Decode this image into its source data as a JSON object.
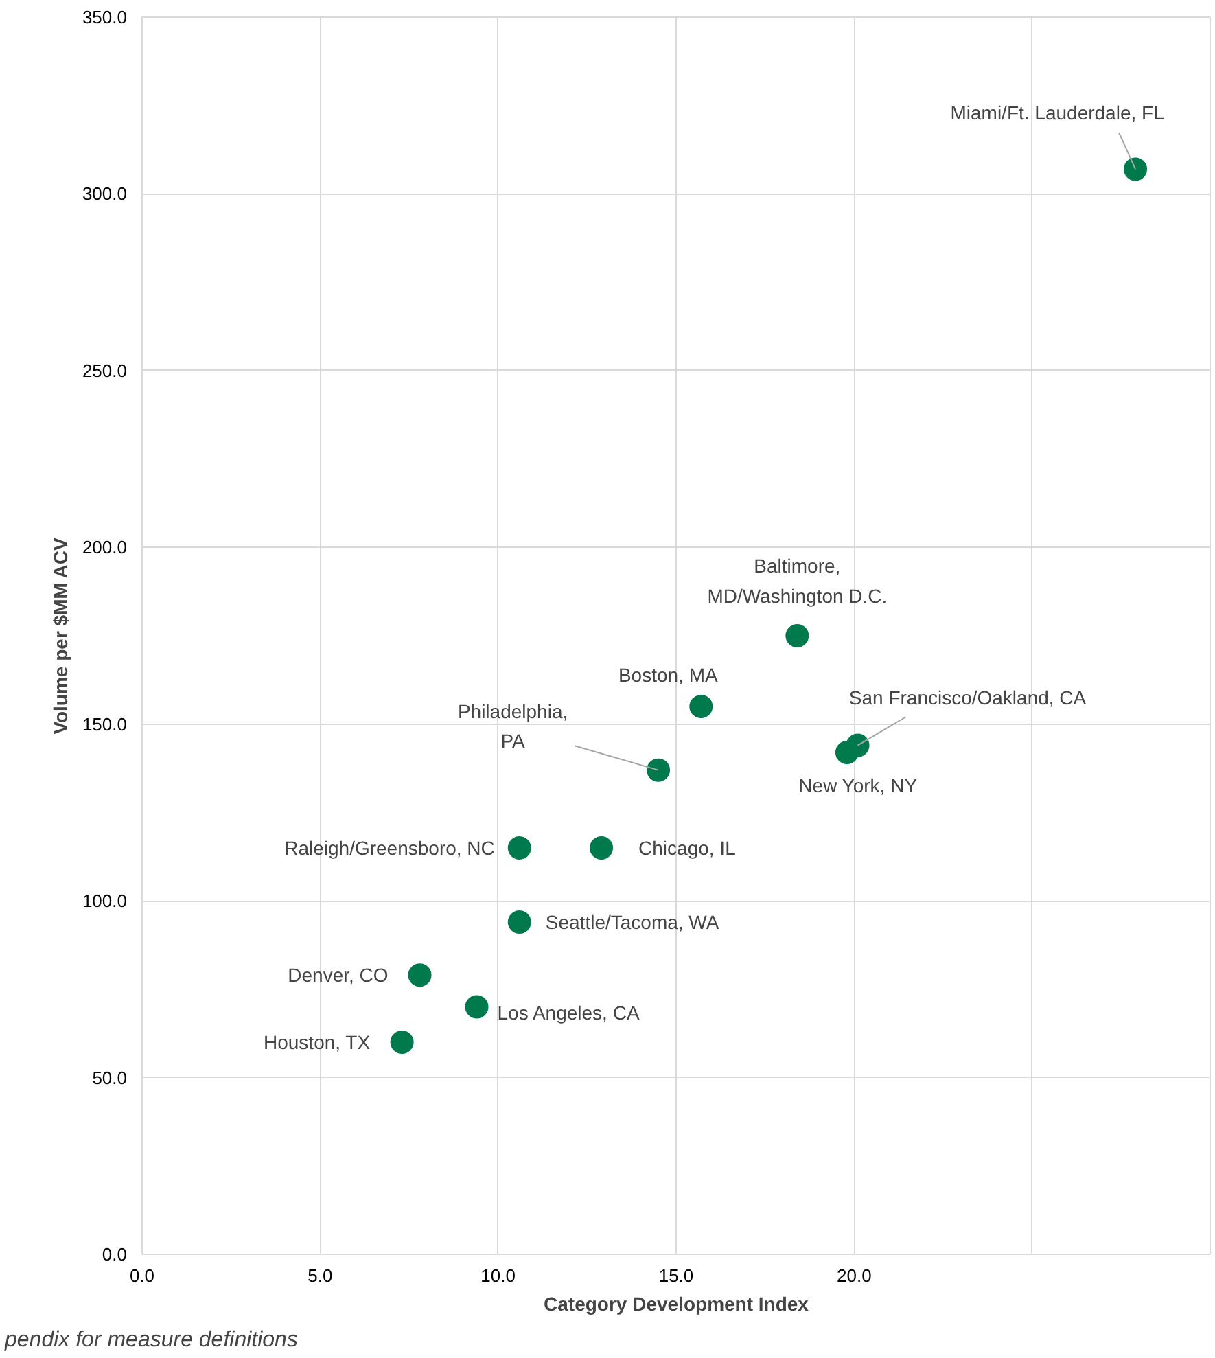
{
  "chart_data": {
    "type": "scatter",
    "xlabel": "Category Development Index",
    "ylabel": "Volume per $MM ACV",
    "x": [
      27.9,
      18.4,
      15.7,
      14.5,
      20.1,
      19.8,
      10.6,
      12.9,
      10.6,
      7.8,
      9.4,
      7.3
    ],
    "series": [
      {
        "color": "#007a4d",
        "values": [
          307,
          175,
          155,
          137,
          144,
          142,
          115,
          115,
          94,
          79,
          70,
          60
        ]
      }
    ],
    "marker": "circle",
    "grid": true,
    "xlim": [
      0,
      30
    ],
    "ylim": [
      0,
      350
    ],
    "xticks": [
      {
        "value": 0,
        "label": "0.0"
      },
      {
        "value": 5,
        "label": "5.0"
      },
      {
        "value": 10,
        "label": "10.0"
      },
      {
        "value": 15,
        "label": "15.0"
      },
      {
        "value": 20,
        "label": "20.0"
      },
      {
        "value": 25,
        "label": null
      }
    ],
    "yticks": [
      {
        "value": 0,
        "label": "0.0"
      },
      {
        "value": 50,
        "label": "50.0"
      },
      {
        "value": 100,
        "label": "100.0"
      },
      {
        "value": 150,
        "label": "150.0"
      },
      {
        "value": 200,
        "label": "200.0"
      },
      {
        "value": 250,
        "label": "250.0"
      },
      {
        "value": 300,
        "label": "300.0"
      },
      {
        "value": 350,
        "label": "350.0"
      }
    ],
    "annotations": [
      {
        "text": "Miami/Ft. Lauderdale, FL",
        "x": 27.9,
        "y": 307
      },
      {
        "text": "Baltimore,\nMD/Washington D.C.",
        "x": 18.4,
        "y": 175
      },
      {
        "text": "Boston, MA",
        "x": 15.7,
        "y": 155
      },
      {
        "text": "Philadelphia,\nPA",
        "x": 14.5,
        "y": 137
      },
      {
        "text": "San Francisco/Oakland, CA",
        "x": 20.1,
        "y": 144
      },
      {
        "text": "New York, NY",
        "x": 19.8,
        "y": 142
      },
      {
        "text": "Raleigh/Greensboro, NC",
        "x": 10.6,
        "y": 115
      },
      {
        "text": "Chicago, IL",
        "x": 12.9,
        "y": 115
      },
      {
        "text": "Seattle/Tacoma, WA",
        "x": 10.6,
        "y": 94
      },
      {
        "text": "Denver, CO",
        "x": 7.8,
        "y": 79
      },
      {
        "text": "Los Angeles, CA",
        "x": 9.4,
        "y": 70
      },
      {
        "text": "Houston, TX",
        "x": 7.3,
        "y": 60
      },
      "pendix for measure definitions"
    ]
  }
}
